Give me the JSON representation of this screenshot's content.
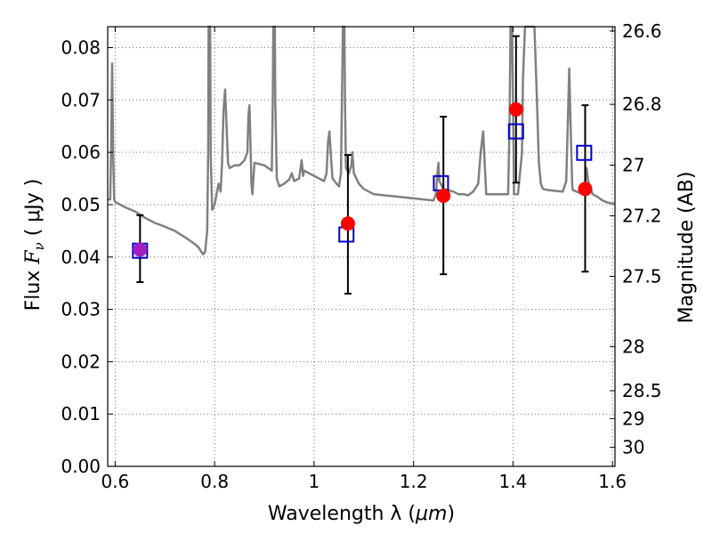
{
  "chart_data": {
    "type": "scatter",
    "xlabel": {
      "main": "Wavelength  λ (",
      "unit": "μm",
      "close": ")"
    },
    "ylabel": {
      "main": "Flux  ",
      "var": "F",
      "sub": "ν",
      "unit": "  ( μJy )"
    },
    "y2label": "Magnitude (AB)",
    "xlim": [
      0.585,
      1.605
    ],
    "ylim": [
      0.0,
      0.084
    ],
    "xticks": [
      0.6,
      0.8,
      1.0,
      1.2,
      1.4,
      1.6
    ],
    "xtick_labels": [
      "0.6",
      "0.8",
      "1",
      "1.2",
      "1.4",
      "1.6"
    ],
    "yticks": [
      0.0,
      0.01,
      0.02,
      0.03,
      0.04,
      0.05,
      0.06,
      0.07,
      0.08
    ],
    "ytick_labels": [
      "0.00",
      "0.01",
      "0.02",
      "0.03",
      "0.04",
      "0.05",
      "0.06",
      "0.07",
      "0.08"
    ],
    "y2ticks": [
      26.6,
      26.8,
      27,
      27.2,
      27.5,
      28,
      28.5,
      29,
      30
    ],
    "y2tick_labels": [
      "26.6",
      "26.8",
      "27",
      "27.2",
      "27.5",
      "28",
      "28.5",
      "29",
      "30"
    ],
    "grid": true,
    "colors": {
      "model": "#808080",
      "observed": "#ff0000",
      "observed_overlap": "#a020c0",
      "synthetic": "#0000cc",
      "errorbar": "#000000"
    },
    "model_spectrum": [
      [
        0.585,
        0.051
      ],
      [
        0.59,
        0.051
      ],
      [
        0.592,
        0.061
      ],
      [
        0.594,
        0.077
      ],
      [
        0.596,
        0.06
      ],
      [
        0.598,
        0.051
      ],
      [
        0.6,
        0.0505
      ],
      [
        0.62,
        0.0495
      ],
      [
        0.64,
        0.0487
      ],
      [
        0.66,
        0.0475
      ],
      [
        0.68,
        0.0465
      ],
      [
        0.7,
        0.0458
      ],
      [
        0.72,
        0.045
      ],
      [
        0.74,
        0.0438
      ],
      [
        0.76,
        0.0425
      ],
      [
        0.768,
        0.0418
      ],
      [
        0.773,
        0.041
      ],
      [
        0.777,
        0.0405
      ],
      [
        0.781,
        0.041
      ],
      [
        0.785,
        0.045
      ],
      [
        0.787,
        0.06
      ],
      [
        0.788,
        0.084
      ],
      [
        0.791,
        0.084
      ],
      [
        0.792,
        0.06
      ],
      [
        0.795,
        0.049
      ],
      [
        0.8,
        0.05
      ],
      [
        0.805,
        0.0525
      ],
      [
        0.808,
        0.054
      ],
      [
        0.812,
        0.0525
      ],
      [
        0.815,
        0.058
      ],
      [
        0.818,
        0.068
      ],
      [
        0.821,
        0.072
      ],
      [
        0.824,
        0.065
      ],
      [
        0.827,
        0.058
      ],
      [
        0.83,
        0.057
      ],
      [
        0.84,
        0.0575
      ],
      [
        0.85,
        0.0575
      ],
      [
        0.86,
        0.0585
      ],
      [
        0.866,
        0.06
      ],
      [
        0.868,
        0.067
      ],
      [
        0.87,
        0.069
      ],
      [
        0.872,
        0.062
      ],
      [
        0.874,
        0.054
      ],
      [
        0.876,
        0.052
      ],
      [
        0.88,
        0.058
      ],
      [
        0.9,
        0.0575
      ],
      [
        0.915,
        0.0565
      ],
      [
        0.917,
        0.07
      ],
      [
        0.918,
        0.084
      ],
      [
        0.921,
        0.084
      ],
      [
        0.922,
        0.07
      ],
      [
        0.925,
        0.055
      ],
      [
        0.93,
        0.0535
      ],
      [
        0.94,
        0.054
      ],
      [
        0.95,
        0.0548
      ],
      [
        0.955,
        0.056
      ],
      [
        0.96,
        0.0545
      ],
      [
        0.97,
        0.055
      ],
      [
        0.975,
        0.0585
      ],
      [
        0.978,
        0.0555
      ],
      [
        0.98,
        0.0565
      ],
      [
        0.99,
        0.056
      ],
      [
        1.0,
        0.0555
      ],
      [
        1.01,
        0.055
      ],
      [
        1.02,
        0.0545
      ],
      [
        1.025,
        0.056
      ],
      [
        1.028,
        0.062
      ],
      [
        1.031,
        0.064
      ],
      [
        1.034,
        0.059
      ],
      [
        1.037,
        0.055
      ],
      [
        1.045,
        0.054
      ],
      [
        1.05,
        0.0535
      ],
      [
        1.054,
        0.056
      ],
      [
        1.056,
        0.07
      ],
      [
        1.058,
        0.084
      ],
      [
        1.061,
        0.084
      ],
      [
        1.062,
        0.07
      ],
      [
        1.064,
        0.057
      ],
      [
        1.07,
        0.056
      ],
      [
        1.075,
        0.0575
      ],
      [
        1.077,
        0.06
      ],
      [
        1.08,
        0.056
      ],
      [
        1.09,
        0.054
      ],
      [
        1.1,
        0.053
      ],
      [
        1.12,
        0.052
      ],
      [
        1.14,
        0.0518
      ],
      [
        1.16,
        0.0516
      ],
      [
        1.18,
        0.0514
      ],
      [
        1.2,
        0.0512
      ],
      [
        1.22,
        0.051
      ],
      [
        1.24,
        0.0508
      ],
      [
        1.245,
        0.052
      ],
      [
        1.248,
        0.056
      ],
      [
        1.25,
        0.058
      ],
      [
        1.252,
        0.0545
      ],
      [
        1.26,
        0.053
      ],
      [
        1.28,
        0.0525
      ],
      [
        1.29,
        0.052
      ],
      [
        1.3,
        0.052
      ],
      [
        1.31,
        0.0518
      ],
      [
        1.32,
        0.0525
      ],
      [
        1.33,
        0.054
      ],
      [
        1.335,
        0.06
      ],
      [
        1.34,
        0.064
      ],
      [
        1.343,
        0.058
      ],
      [
        1.346,
        0.052
      ],
      [
        1.36,
        0.052
      ],
      [
        1.38,
        0.052
      ],
      [
        1.39,
        0.052
      ],
      [
        1.393,
        0.065
      ],
      [
        1.395,
        0.084
      ],
      [
        1.398,
        0.084
      ],
      [
        1.4,
        0.07
      ],
      [
        1.402,
        0.052
      ],
      [
        1.41,
        0.052
      ],
      [
        1.418,
        0.06
      ],
      [
        1.42,
        0.074
      ],
      [
        1.424,
        0.084
      ],
      [
        1.443,
        0.084
      ],
      [
        1.448,
        0.07
      ],
      [
        1.452,
        0.058
      ],
      [
        1.456,
        0.054
      ],
      [
        1.46,
        0.053
      ],
      [
        1.47,
        0.0528
      ],
      [
        1.48,
        0.0527
      ],
      [
        1.49,
        0.0526
      ],
      [
        1.5,
        0.0525
      ],
      [
        1.507,
        0.0545
      ],
      [
        1.51,
        0.065
      ],
      [
        1.513,
        0.076
      ],
      [
        1.516,
        0.064
      ],
      [
        1.519,
        0.054
      ],
      [
        1.52,
        0.0528
      ],
      [
        1.53,
        0.0524
      ],
      [
        1.54,
        0.052
      ],
      [
        1.545,
        0.054
      ],
      [
        1.548,
        0.057
      ],
      [
        1.551,
        0.0545
      ],
      [
        1.56,
        0.052
      ],
      [
        1.57,
        0.0515
      ],
      [
        1.58,
        0.0508
      ],
      [
        1.59,
        0.0504
      ],
      [
        1.6,
        0.0502
      ],
      [
        1.605,
        0.0502
      ]
    ],
    "synthetic_photometry": [
      {
        "x": 0.65,
        "y": 0.0412
      },
      {
        "x": 1.065,
        "y": 0.0443
      },
      {
        "x": 1.255,
        "y": 0.0541
      },
      {
        "x": 1.406,
        "y": 0.064
      },
      {
        "x": 1.543,
        "y": 0.0599
      }
    ],
    "observed_photometry": [
      {
        "x": 0.65,
        "y": 0.0414,
        "err_low": 0.0352,
        "err_high": 0.048,
        "overlap": true
      },
      {
        "x": 1.068,
        "y": 0.0464,
        "err_low": 0.033,
        "err_high": 0.0595,
        "overlap": false
      },
      {
        "x": 1.26,
        "y": 0.0517,
        "err_low": 0.0367,
        "err_high": 0.0668,
        "overlap": false
      },
      {
        "x": 1.406,
        "y": 0.0682,
        "err_low": 0.0542,
        "err_high": 0.0822,
        "overlap": false
      },
      {
        "x": 1.545,
        "y": 0.053,
        "err_low": 0.0372,
        "err_high": 0.069,
        "overlap": false
      }
    ]
  }
}
